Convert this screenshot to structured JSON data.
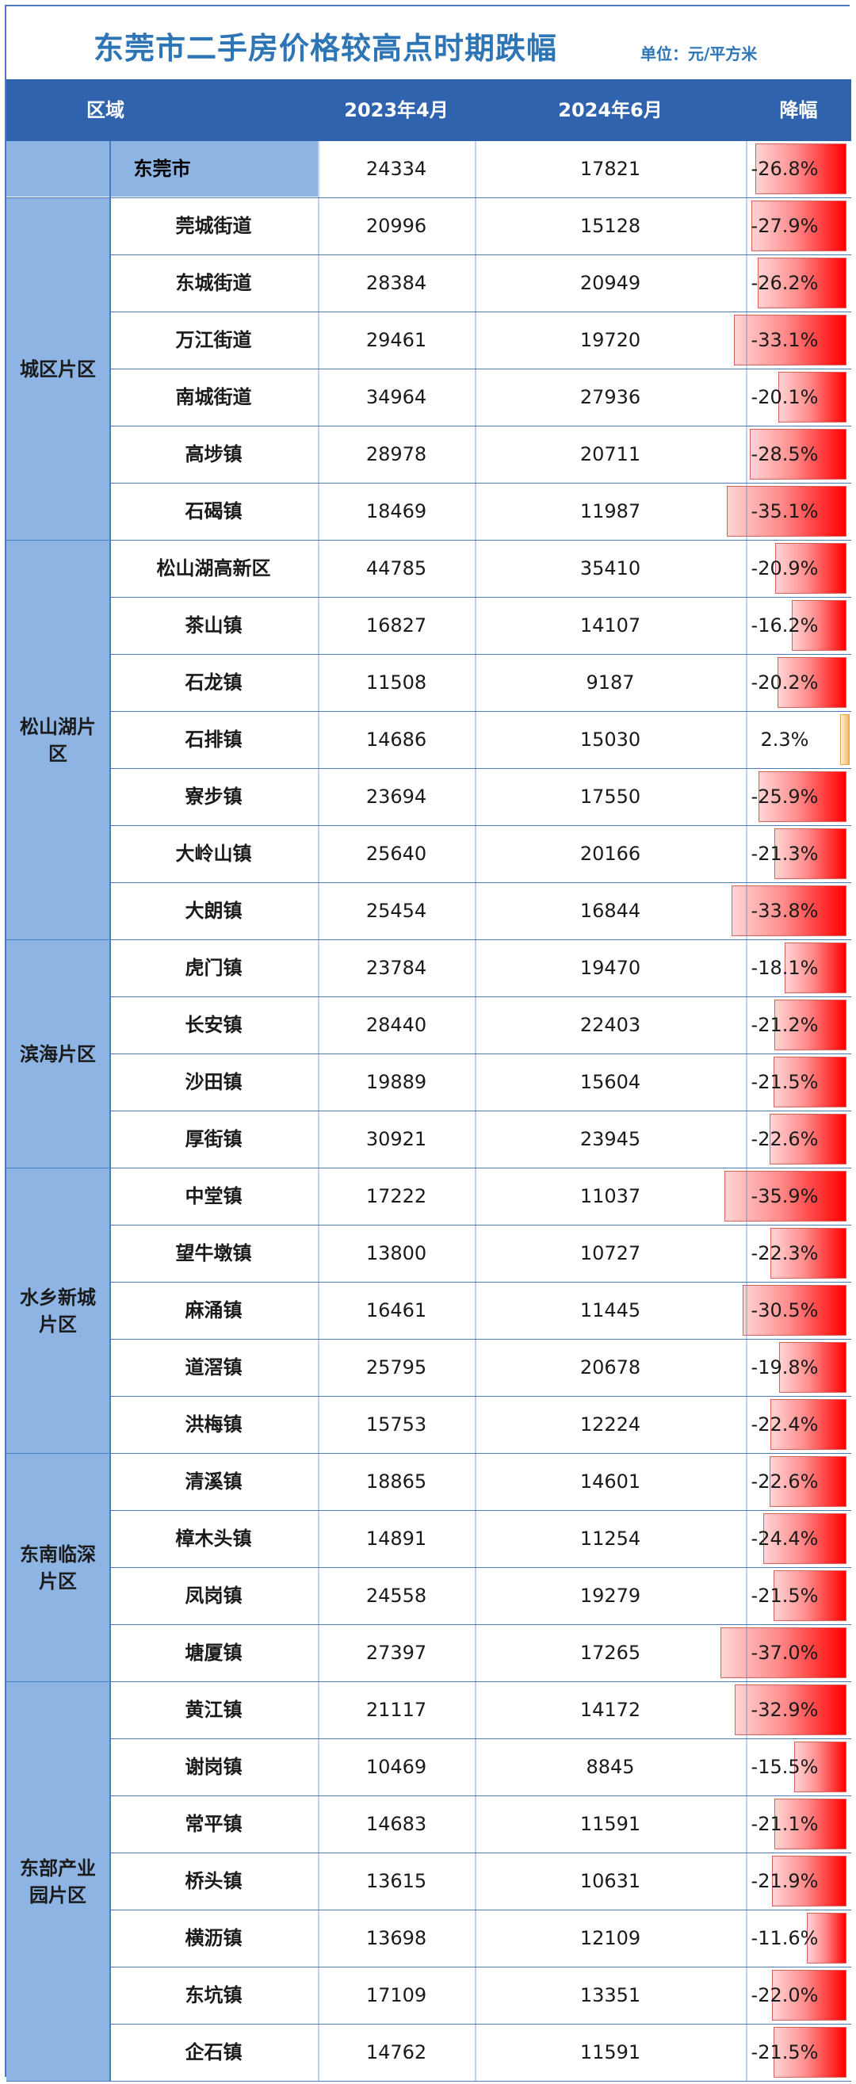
{
  "title": "东莞市二手房价格较高点时期跌幅",
  "unit": "单位：元/平方米",
  "columns": [
    "区域",
    "2023年4月",
    "2024年6月",
    "降幅"
  ],
  "city": {
    "name": "东莞市",
    "apr2023": "24334",
    "jun2024": "17821",
    "drop": "-26.8%",
    "drop_value": -26.8
  },
  "regions": [
    {
      "name": "城区片区",
      "towns": [
        {
          "name": "莞城街道",
          "apr2023": "20996",
          "jun2024": "15128",
          "drop": "-27.9%",
          "drop_value": -27.9
        },
        {
          "name": "东城街道",
          "apr2023": "28384",
          "jun2024": "20949",
          "drop": "-26.2%",
          "drop_value": -26.2
        },
        {
          "name": "万江街道",
          "apr2023": "29461",
          "jun2024": "19720",
          "drop": "-33.1%",
          "drop_value": -33.1
        },
        {
          "name": "南城街道",
          "apr2023": "34964",
          "jun2024": "27936",
          "drop": "-20.1%",
          "drop_value": -20.1
        },
        {
          "name": "高埗镇",
          "apr2023": "28978",
          "jun2024": "20711",
          "drop": "-28.5%",
          "drop_value": -28.5
        },
        {
          "name": "石碣镇",
          "apr2023": "18469",
          "jun2024": "11987",
          "drop": "-35.1%",
          "drop_value": -35.1
        }
      ]
    },
    {
      "name": "松山湖片区",
      "towns": [
        {
          "name": "松山湖高新区",
          "apr2023": "44785",
          "jun2024": "35410",
          "drop": "-20.9%",
          "drop_value": -20.9
        },
        {
          "name": "茶山镇",
          "apr2023": "16827",
          "jun2024": "14107",
          "drop": "-16.2%",
          "drop_value": -16.2
        },
        {
          "name": "石龙镇",
          "apr2023": "11508",
          "jun2024": "9187",
          "drop": "-20.2%",
          "drop_value": -20.2
        },
        {
          "name": "石排镇",
          "apr2023": "14686",
          "jun2024": "15030",
          "drop": "2.3%",
          "drop_value": 2.3
        },
        {
          "name": "寮步镇",
          "apr2023": "23694",
          "jun2024": "17550",
          "drop": "-25.9%",
          "drop_value": -25.9
        },
        {
          "name": "大岭山镇",
          "apr2023": "25640",
          "jun2024": "20166",
          "drop": "-21.3%",
          "drop_value": -21.3
        },
        {
          "name": "大朗镇",
          "apr2023": "25454",
          "jun2024": "16844",
          "drop": "-33.8%",
          "drop_value": -33.8
        }
      ]
    },
    {
      "name": "滨海片区",
      "towns": [
        {
          "name": "虎门镇",
          "apr2023": "23784",
          "jun2024": "19470",
          "drop": "-18.1%",
          "drop_value": -18.1
        },
        {
          "name": "长安镇",
          "apr2023": "28440",
          "jun2024": "22403",
          "drop": "-21.2%",
          "drop_value": -21.2
        },
        {
          "name": "沙田镇",
          "apr2023": "19889",
          "jun2024": "15604",
          "drop": "-21.5%",
          "drop_value": -21.5
        },
        {
          "name": "厚街镇",
          "apr2023": "30921",
          "jun2024": "23945",
          "drop": "-22.6%",
          "drop_value": -22.6
        }
      ]
    },
    {
      "name": "水乡新城片区",
      "towns": [
        {
          "name": "中堂镇",
          "apr2023": "17222",
          "jun2024": "11037",
          "drop": "-35.9%",
          "drop_value": -35.9
        },
        {
          "name": "望牛墩镇",
          "apr2023": "13800",
          "jun2024": "10727",
          "drop": "-22.3%",
          "drop_value": -22.3
        },
        {
          "name": "麻涌镇",
          "apr2023": "16461",
          "jun2024": "11445",
          "drop": "-30.5%",
          "drop_value": -30.5
        },
        {
          "name": "道滘镇",
          "apr2023": "25795",
          "jun2024": "20678",
          "drop": "-19.8%",
          "drop_value": -19.8
        },
        {
          "name": "洪梅镇",
          "apr2023": "15753",
          "jun2024": "12224",
          "drop": "-22.4%",
          "drop_value": -22.4
        }
      ]
    },
    {
      "name": "东南临深片区",
      "towns": [
        {
          "name": "清溪镇",
          "apr2023": "18865",
          "jun2024": "14601",
          "drop": "-22.6%",
          "drop_value": -22.6
        },
        {
          "name": "樟木头镇",
          "apr2023": "14891",
          "jun2024": "11254",
          "drop": "-24.4%",
          "drop_value": -24.4
        },
        {
          "name": "凤岗镇",
          "apr2023": "24558",
          "jun2024": "19279",
          "drop": "-21.5%",
          "drop_value": -21.5
        },
        {
          "name": "塘厦镇",
          "apr2023": "27397",
          "jun2024": "17265",
          "drop": "-37.0%",
          "drop_value": -37.0
        }
      ]
    },
    {
      "name": "东部产业园片区",
      "towns": [
        {
          "name": "黄江镇",
          "apr2023": "21117",
          "jun2024": "14172",
          "drop": "-32.9%",
          "drop_value": -32.9
        },
        {
          "name": "谢岗镇",
          "apr2023": "10469",
          "jun2024": "8845",
          "drop": "-15.5%",
          "drop_value": -15.5
        },
        {
          "name": "常平镇",
          "apr2023": "14683",
          "jun2024": "11591",
          "drop": "-21.1%",
          "drop_value": -21.1
        },
        {
          "name": "桥头镇",
          "apr2023": "13615",
          "jun2024": "10631",
          "drop": "-21.9%",
          "drop_value": -21.9
        },
        {
          "name": "横沥镇",
          "apr2023": "13698",
          "jun2024": "12109",
          "drop": "-11.6%",
          "drop_value": -11.6
        },
        {
          "name": "东坑镇",
          "apr2023": "17109",
          "jun2024": "13351",
          "drop": "-22.0%",
          "drop_value": -22.0
        },
        {
          "name": "企石镇",
          "apr2023": "14762",
          "jun2024": "11591",
          "drop": "-21.5%",
          "drop_value": -21.5
        }
      ]
    }
  ],
  "colors": {
    "header": "#2f63ad",
    "region": "#8eb4e3",
    "bar_negative": "#ff0000",
    "bar_positive": "#f3b860",
    "title": "#2e75b6"
  },
  "chart_data": {
    "type": "table",
    "title": "东莞市二手房价格较高点时期跌幅",
    "unit": "单位：元/平方米",
    "columns": [
      "区域",
      "2023年4月",
      "2024年6月",
      "降幅"
    ],
    "note": "降幅 column rendered as in-cell data bars (red for decline, orange for rise)"
  }
}
